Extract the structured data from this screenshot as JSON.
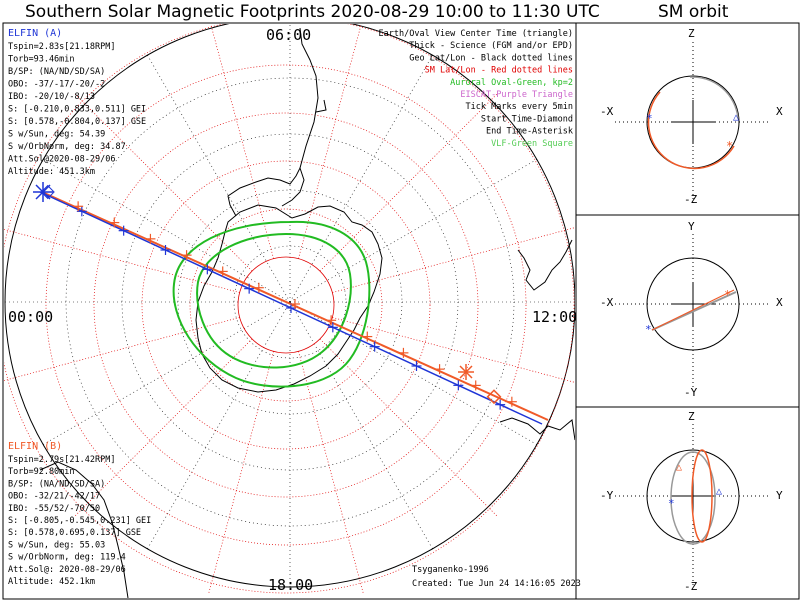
{
  "title": "Southern Solar Magnetic Footprints 2020-08-29 10:00 to 11:30 UTC",
  "orbit_title": "SM orbit",
  "polar_labels": {
    "top": "06:00",
    "left": "00:00",
    "right": "12:00",
    "bottom": "18:00"
  },
  "elfin_a": {
    "name": "ELFIN (A)",
    "color": "#1f35d6",
    "lines": [
      "Tspin=2.83s[21.18RPM]",
      "Torb=93.46min",
      "B/SP: (NA/ND/SD/SA)",
      "OBO: -37/-17/-20/-2",
      "IBO: -20/10/-8/13",
      "S: [-0.210,0.833,0.511] GEI",
      "S: [0.578,-0.804,0.137] GSE",
      "S w/Sun, deg: 54.39",
      "S w/OrbNorm, deg: 34.87",
      "Att.Sol@2020-08-29/06",
      "Altitude: 451.3km"
    ]
  },
  "elfin_b": {
    "name": "ELFIN (B)",
    "color": "#f05a28",
    "lines": [
      "Tspin=2.79s[21.42RPM]",
      "Torb=92.80min",
      "B/SP: (NA/ND/SD/SA)",
      "OBO: -32/21/-42/17",
      "IBO: -55/52/-70/50",
      "S: [-0.805,-0.545,0.231] GEI",
      "S: [0.578,0.695,0.137] GSE",
      "S w/Sun, deg: 55.03",
      "S w/OrbNorm, deg: 119.4",
      "Att.Sol@: 2020-08-29/06",
      "Altitude: 452.1km"
    ]
  },
  "legend": [
    {
      "text": "Earth/Oval View Center Time (triangle)",
      "color": "#000000"
    },
    {
      "text": "Thick - Science (FGM and/or EPD)",
      "color": "#000000"
    },
    {
      "text": "Geo Lat/Lon - Black dotted lines",
      "color": "#000000"
    },
    {
      "text": "SM Lat/Lon - Red dotted lines",
      "color": "#e00000"
    },
    {
      "text": "Auroral Oval-Green, kp=2",
      "color": "#22bb22"
    },
    {
      "text": "EISCAT-Purple Triangle",
      "color": "#cc66cc"
    },
    {
      "text": "Tick Marks every 5min",
      "color": "#000000"
    },
    {
      "text": "Start Time-Diamond",
      "color": "#000000"
    },
    {
      "text": "End Time-Asterisk",
      "color": "#000000"
    },
    {
      "text": "VLF-Green Square",
      "color": "#55cc55"
    }
  ],
  "credits": {
    "author": "Tsyganenko-1996",
    "created": "Created: Tue Jun 24 14:16:05 2023"
  },
  "orbit_panels": [
    {
      "top": "Z",
      "bottom": "-Z",
      "left": "-X",
      "right": "X"
    },
    {
      "top": "Y",
      "bottom": "-Y",
      "left": "-X",
      "right": "X"
    },
    {
      "top": "Z",
      "bottom": "-Z",
      "left": "-Y",
      "right": "Y"
    }
  ],
  "chart_data": {
    "type": "scatter",
    "title": "Southern Solar Magnetic Footprints 2020-08-29 10:00 to 11:30 UTC",
    "series": [
      {
        "name": "ELFIN (A)",
        "color": "#1f35d6"
      },
      {
        "name": "ELFIN (B)",
        "color": "#f05a28"
      }
    ]
  }
}
